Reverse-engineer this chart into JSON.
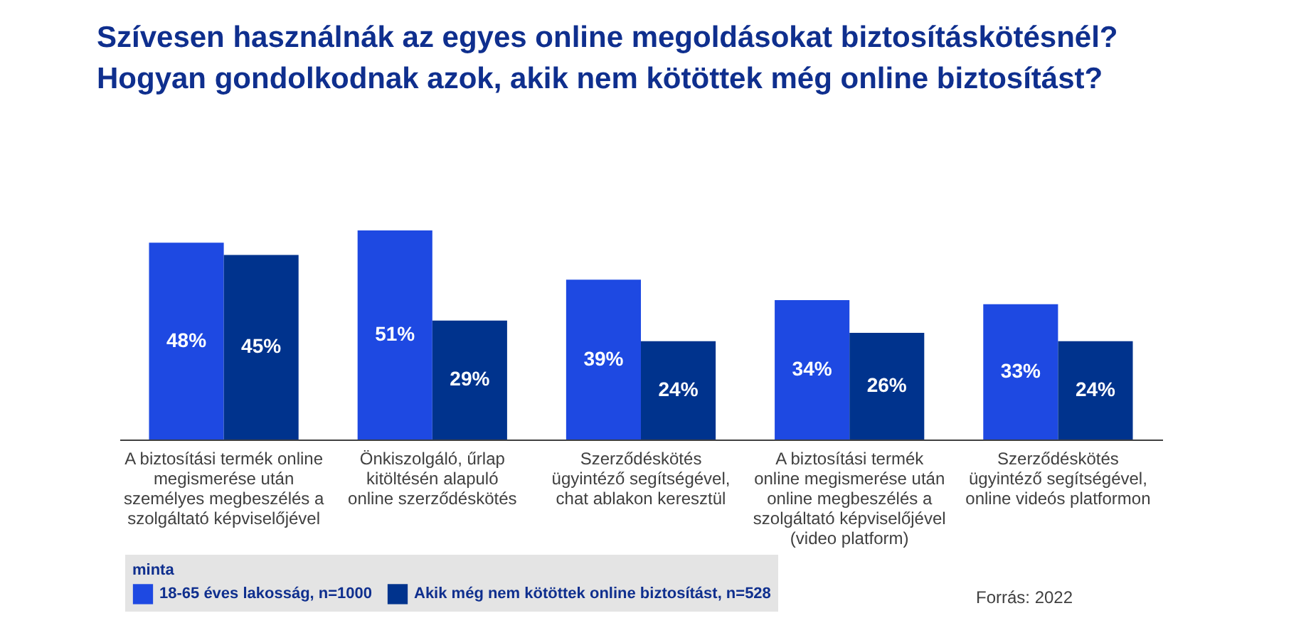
{
  "chart_data": {
    "type": "bar",
    "title": "Szívesen használnák az egyes online megoldásokat biztosításkötésnél?\nHogyan gondolkodnak azok, akik nem kötöttek még online biztosítást?",
    "categories": [
      "A biztosítási termék online\nmegismerése után\nszemélyes megbeszélés a\nszolgáltató képviselőjével",
      "Önkiszolgáló, űrlap\nkitöltésén alapuló\nonline szerződéskötés",
      "Szerződéskötés\nügyintéző segítségével,\nchat ablakon keresztül",
      "A biztosítási termék\nonline megismerése után\nonline megbeszélés a\nszolgáltató képviselőjével\n(video platform)",
      "Szerződéskötés\nügyintéző segítségével,\nonline videós platformon"
    ],
    "series": [
      {
        "name": "18-65 éves lakosság, n=1000",
        "color": "#1e49e2",
        "values": [
          48,
          51,
          39,
          34,
          33
        ],
        "value_labels": [
          "48%",
          "51%",
          "39%",
          "34%",
          "33%"
        ]
      },
      {
        "name": "Akik még nem kötöttek online biztosítást, n=528",
        "color": "#00338d",
        "values": [
          45,
          29,
          24,
          26,
          24
        ],
        "value_labels": [
          "45%",
          "29%",
          "24%",
          "26%",
          "24%"
        ]
      }
    ],
    "legend_title": "minta",
    "legend": "bottom left",
    "tick_labels": "x",
    "annotations": [
      "Forrás: 2022"
    ]
  }
}
